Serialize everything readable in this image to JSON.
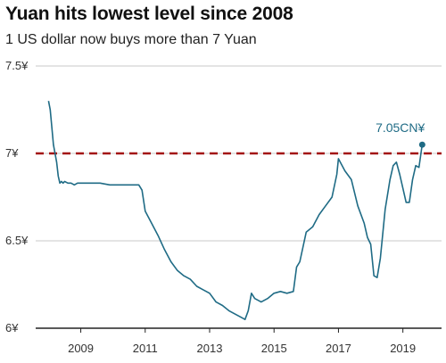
{
  "chart_data": {
    "type": "line",
    "title": "Yuan hits lowest level since 2008",
    "subtitle": "1 US dollar now buys more than 7 Yuan",
    "xlabel": "",
    "ylabel": "",
    "xlim": [
      2007.6,
      2020.2
    ],
    "ylim": [
      6.0,
      7.5
    ],
    "x_ticks": [
      2009,
      2011,
      2013,
      2015,
      2017,
      2019
    ],
    "x_tick_labels": [
      "2009",
      "2011",
      "2013",
      "2015",
      "2017",
      "2019"
    ],
    "y_ticks": [
      6.0,
      6.5,
      7.0,
      7.5
    ],
    "y_tick_labels": [
      "6¥",
      "6.5¥",
      "7¥",
      "7.5¥"
    ],
    "grid": "horizontal",
    "reference_line": {
      "value": 7.0,
      "style": "dashed",
      "color": "#a31515"
    },
    "line_color": "#1f6b85",
    "annotation": {
      "text": "7.05CN¥",
      "x": 2019.6,
      "y": 7.05,
      "color": "#1f6b85"
    },
    "series": [
      {
        "x": [
          2008.0,
          2008.05,
          2008.1,
          2008.15,
          2008.2,
          2008.25,
          2008.3,
          2008.35,
          2008.4,
          2008.45,
          2008.5,
          2008.6,
          2008.7,
          2008.8,
          2008.9,
          2009.0,
          2009.3,
          2009.6,
          2009.9,
          2010.2,
          2010.5,
          2010.8,
          2010.9,
          2011.0,
          2011.2,
          2011.4,
          2011.6,
          2011.8,
          2012.0,
          2012.2,
          2012.4,
          2012.6,
          2012.8,
          2013.0,
          2013.2,
          2013.4,
          2013.6,
          2013.8,
          2014.0,
          2014.1,
          2014.2,
          2014.3,
          2014.4,
          2014.6,
          2014.8,
          2015.0,
          2015.2,
          2015.4,
          2015.6,
          2015.7,
          2015.8,
          2016.0,
          2016.2,
          2016.4,
          2016.6,
          2016.8,
          2016.95,
          2017.0,
          2017.2,
          2017.4,
          2017.6,
          2017.8,
          2017.9,
          2018.0,
          2018.1,
          2018.2,
          2018.3,
          2018.45,
          2018.6,
          2018.7,
          2018.8,
          2018.9,
          2019.0,
          2019.1,
          2019.2,
          2019.3,
          2019.4,
          2019.5,
          2019.6
        ],
        "y": [
          7.3,
          7.25,
          7.15,
          7.05,
          7.0,
          6.95,
          6.87,
          6.83,
          6.84,
          6.83,
          6.84,
          6.83,
          6.83,
          6.82,
          6.83,
          6.83,
          6.83,
          6.83,
          6.82,
          6.82,
          6.82,
          6.82,
          6.79,
          6.67,
          6.6,
          6.53,
          6.45,
          6.38,
          6.33,
          6.3,
          6.28,
          6.24,
          6.22,
          6.2,
          6.15,
          6.13,
          6.1,
          6.08,
          6.06,
          6.05,
          6.1,
          6.2,
          6.17,
          6.15,
          6.17,
          6.2,
          6.21,
          6.2,
          6.21,
          6.35,
          6.38,
          6.55,
          6.58,
          6.65,
          6.7,
          6.75,
          6.88,
          6.97,
          6.9,
          6.85,
          6.7,
          6.6,
          6.52,
          6.48,
          6.3,
          6.29,
          6.4,
          6.68,
          6.85,
          6.93,
          6.95,
          6.88,
          6.8,
          6.72,
          6.72,
          6.85,
          6.93,
          6.92,
          7.05
        ]
      }
    ]
  }
}
